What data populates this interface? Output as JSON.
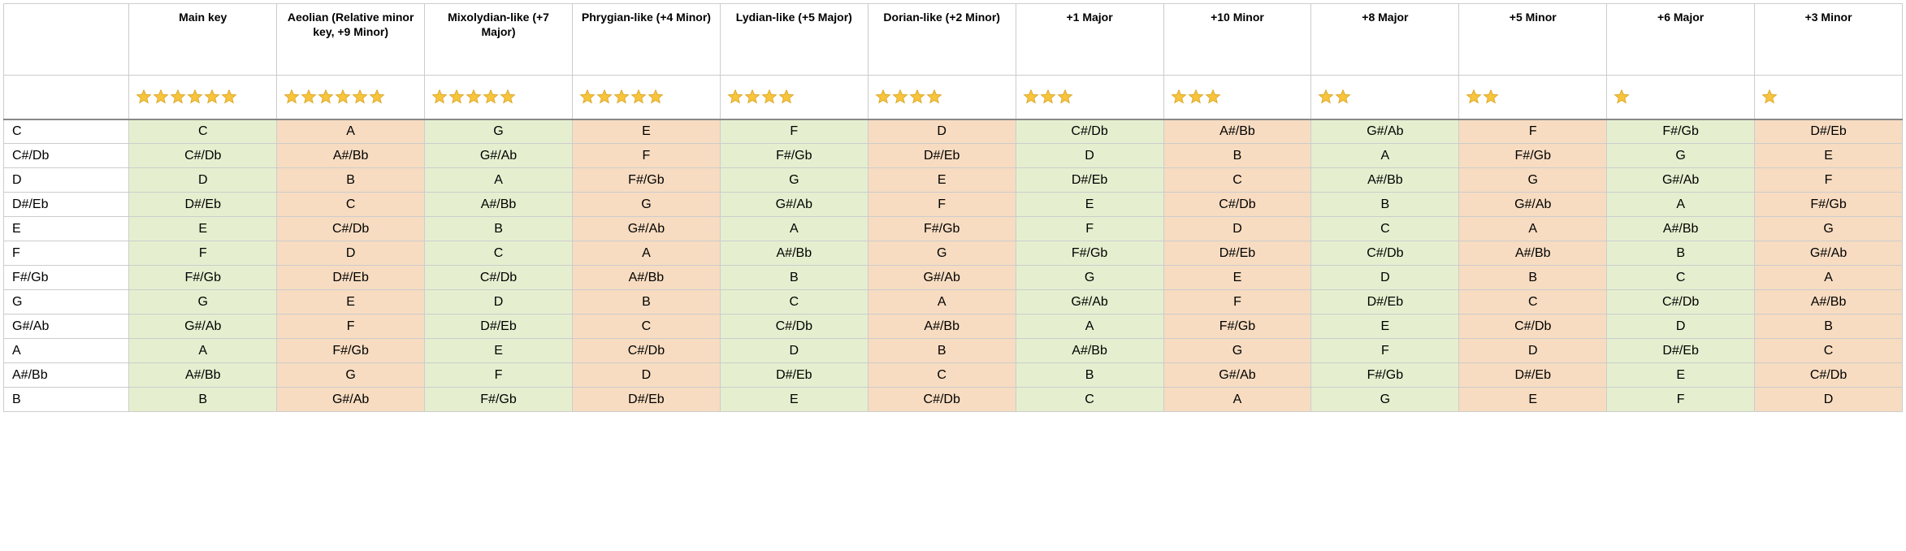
{
  "colors": {
    "green": "#e5efcf",
    "orange": "#f7dcc1",
    "border": "#cccccc",
    "rating_sep": "#888888",
    "star_fill": "#f7c43b",
    "star_stroke": "#d9a425",
    "text": "#000000",
    "bg": "#ffffff"
  },
  "typography": {
    "header_fontsize": 14,
    "cell_fontsize": 16,
    "header_weight": 700
  },
  "columns": [
    {
      "label": "Main key",
      "rating": 6,
      "color": "green"
    },
    {
      "label": "Aeolian (Relative minor key, +9 Minor)",
      "rating": 6,
      "color": "orange"
    },
    {
      "label": "Mixolydian-like (+7 Major)",
      "rating": 5,
      "color": "green"
    },
    {
      "label": "Phrygian-like (+4 Minor)",
      "rating": 5,
      "color": "orange"
    },
    {
      "label": "Lydian-like (+5 Major)",
      "rating": 4,
      "color": "green"
    },
    {
      "label": "Dorian-like (+2 Minor)",
      "rating": 4,
      "color": "orange"
    },
    {
      "label": "+1 Major",
      "rating": 3,
      "color": "green"
    },
    {
      "label": "+10 Minor",
      "rating": 3,
      "color": "orange"
    },
    {
      "label": "+8 Major",
      "rating": 2,
      "color": "green"
    },
    {
      "label": "+5 Minor",
      "rating": 2,
      "color": "orange"
    },
    {
      "label": "+6 Major",
      "rating": 1,
      "color": "green"
    },
    {
      "label": "+3 Minor",
      "rating": 1,
      "color": "orange"
    }
  ],
  "rows": [
    {
      "key": "C",
      "cells": [
        "C",
        "A",
        "G",
        "E",
        "F",
        "D",
        "C#/Db",
        "A#/Bb",
        "G#/Ab",
        "F",
        "F#/Gb",
        "D#/Eb"
      ]
    },
    {
      "key": "C#/Db",
      "cells": [
        "C#/Db",
        "A#/Bb",
        "G#/Ab",
        "F",
        "F#/Gb",
        "D#/Eb",
        "D",
        "B",
        "A",
        "F#/Gb",
        "G",
        "E"
      ]
    },
    {
      "key": "D",
      "cells": [
        "D",
        "B",
        "A",
        "F#/Gb",
        "G",
        "E",
        "D#/Eb",
        "C",
        "A#/Bb",
        "G",
        "G#/Ab",
        "F"
      ]
    },
    {
      "key": "D#/Eb",
      "cells": [
        "D#/Eb",
        "C",
        "A#/Bb",
        "G",
        "G#/Ab",
        "F",
        "E",
        "C#/Db",
        "B",
        "G#/Ab",
        "A",
        "F#/Gb"
      ]
    },
    {
      "key": "E",
      "cells": [
        "E",
        "C#/Db",
        "B",
        "G#/Ab",
        "A",
        "F#/Gb",
        "F",
        "D",
        "C",
        "A",
        "A#/Bb",
        "G"
      ]
    },
    {
      "key": "F",
      "cells": [
        "F",
        "D",
        "C",
        "A",
        "A#/Bb",
        "G",
        "F#/Gb",
        "D#/Eb",
        "C#/Db",
        "A#/Bb",
        "B",
        "G#/Ab"
      ]
    },
    {
      "key": "F#/Gb",
      "cells": [
        "F#/Gb",
        "D#/Eb",
        "C#/Db",
        "A#/Bb",
        "B",
        "G#/Ab",
        "G",
        "E",
        "D",
        "B",
        "C",
        "A"
      ]
    },
    {
      "key": "G",
      "cells": [
        "G",
        "E",
        "D",
        "B",
        "C",
        "A",
        "G#/Ab",
        "F",
        "D#/Eb",
        "C",
        "C#/Db",
        "A#/Bb"
      ]
    },
    {
      "key": "G#/Ab",
      "cells": [
        "G#/Ab",
        "F",
        "D#/Eb",
        "C",
        "C#/Db",
        "A#/Bb",
        "A",
        "F#/Gb",
        "E",
        "C#/Db",
        "D",
        "B"
      ]
    },
    {
      "key": "A",
      "cells": [
        "A",
        "F#/Gb",
        "E",
        "C#/Db",
        "D",
        "B",
        "A#/Bb",
        "G",
        "F",
        "D",
        "D#/Eb",
        "C"
      ]
    },
    {
      "key": "A#/Bb",
      "cells": [
        "A#/Bb",
        "G",
        "F",
        "D",
        "D#/Eb",
        "C",
        "B",
        "G#/Ab",
        "F#/Gb",
        "D#/Eb",
        "E",
        "C#/Db"
      ]
    },
    {
      "key": "B",
      "cells": [
        "B",
        "G#/Ab",
        "F#/Gb",
        "D#/Eb",
        "E",
        "C#/Db",
        "C",
        "A",
        "G",
        "E",
        "F",
        "D"
      ]
    }
  ]
}
